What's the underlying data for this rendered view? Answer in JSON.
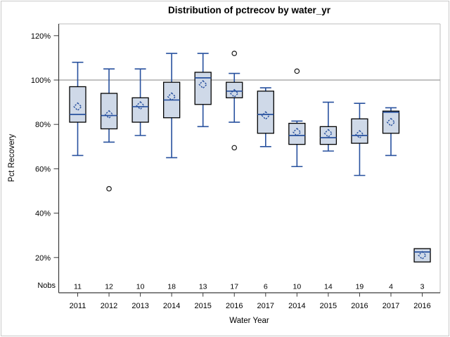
{
  "figure": {
    "title": "Distribution of pctrecov by water_yr",
    "x_axis_label": "Water Year",
    "y_axis_label": "Pct Recovery",
    "nobs_row_label": "Nobs"
  },
  "colors": {
    "box_fill": "#cfd9e8",
    "box_stroke": "#000000",
    "whisker_blue": "#27509e",
    "reference_line": "#9c9c9c",
    "frame_gray": "#bdbdbd",
    "axis_dark": "#3a3a3a",
    "outlier_stroke": "#1a1a1a",
    "outer_border": "#c9c9c9"
  },
  "chart_data": {
    "type": "boxplot",
    "title": "Distribution of pctrecov by water_yr",
    "xlabel": "Water Year",
    "ylabel": "Pct Recovery",
    "ylim": [
      12,
      126
    ],
    "y_ticks": [
      20,
      40,
      60,
      80,
      100,
      120
    ],
    "y_tick_labels": [
      "20%",
      "40%",
      "60%",
      "80%",
      "100%",
      "120%"
    ],
    "grid": "single horizontal reference line at 100%",
    "refline_y": 100,
    "legend": "none",
    "mean_marker": "open dashed blue diamond",
    "categories": [
      "2011",
      "2012",
      "2013",
      "2014",
      "2015",
      "2016",
      "2017",
      "2014",
      "2015",
      "2016",
      "2017",
      "2016"
    ],
    "nobs": [
      11,
      12,
      10,
      18,
      13,
      17,
      6,
      10,
      14,
      19,
      4,
      3
    ],
    "series": [
      {
        "year": "2011",
        "nobs": 11,
        "min": 66,
        "q1": 81,
        "median": 84.5,
        "q3": 97,
        "max": 108,
        "mean": 88,
        "outliers": []
      },
      {
        "year": "2012",
        "nobs": 12,
        "min": 72,
        "q1": 78,
        "median": 84,
        "q3": 94,
        "max": 105,
        "mean": 84.5,
        "outliers": [
          51
        ]
      },
      {
        "year": "2013",
        "nobs": 10,
        "min": 75,
        "q1": 81,
        "median": 88,
        "q3": 92,
        "max": 105,
        "mean": 88.5,
        "outliers": []
      },
      {
        "year": "2014",
        "nobs": 18,
        "min": 65,
        "q1": 83,
        "median": 91,
        "q3": 99,
        "max": 112,
        "mean": 92.5,
        "outliers": []
      },
      {
        "year": "2015",
        "nobs": 13,
        "min": 79,
        "q1": 89,
        "median": 101,
        "q3": 103.5,
        "max": 112,
        "mean": 98,
        "outliers": []
      },
      {
        "year": "2016",
        "nobs": 17,
        "min": 81,
        "q1": 92,
        "median": 95,
        "q3": 99,
        "max": 103,
        "mean": 94,
        "outliers": [
          112,
          69.5
        ]
      },
      {
        "year": "2017",
        "nobs": 6,
        "min": 70,
        "q1": 76,
        "median": 84.5,
        "q3": 95,
        "max": 96.5,
        "mean": 84,
        "outliers": []
      },
      {
        "year": "2014",
        "nobs": 10,
        "min": 61,
        "q1": 71,
        "median": 75,
        "q3": 80.5,
        "max": 81.5,
        "mean": 76.5,
        "outliers": [
          104
        ]
      },
      {
        "year": "2015",
        "nobs": 14,
        "min": 68,
        "q1": 71,
        "median": 74,
        "q3": 79,
        "max": 90,
        "mean": 76,
        "outliers": []
      },
      {
        "year": "2016",
        "nobs": 19,
        "min": 57,
        "q1": 71.5,
        "median": 75,
        "q3": 82.5,
        "max": 89.5,
        "mean": 75.5,
        "outliers": []
      },
      {
        "year": "2017",
        "nobs": 4,
        "min": 66,
        "q1": 76,
        "median": 85.5,
        "q3": 86,
        "max": 87.5,
        "mean": 81,
        "outliers": []
      },
      {
        "year": "2016",
        "nobs": 3,
        "min": 18,
        "q1": 18,
        "median": 22.5,
        "q3": 24,
        "max": 24,
        "mean": 21,
        "outliers": []
      }
    ]
  }
}
